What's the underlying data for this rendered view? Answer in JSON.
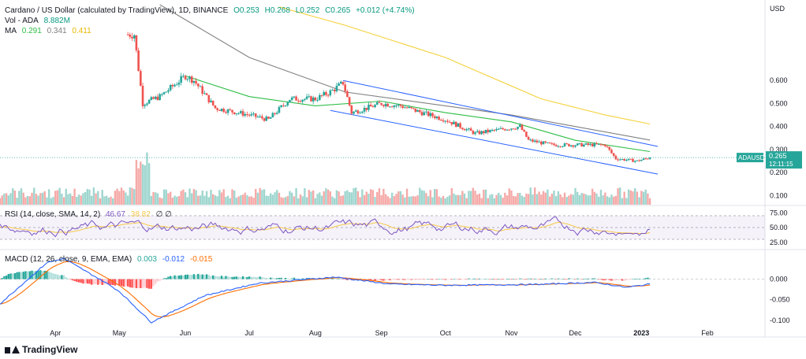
{
  "header": {
    "symbol_line": "Cardano / US Dollar (calculated by TradingView), 1D, BINANCE",
    "o": "O0.253",
    "h": "H0.268",
    "l": "L0.252",
    "c": "C0.265",
    "chg": "+0.012 (+4.74%)",
    "vol_label": "Vol - ADA",
    "vol_value": "8.882M",
    "ma_label": "MA",
    "ma_values": [
      "0.291",
      "0.341",
      "0.411"
    ],
    "rsi_label": "RSI (14, close, SMA, 14, 2)",
    "rsi_values": [
      "46.67",
      "38.82"
    ],
    "rsi_extra": "∅ ∅",
    "macd_label": "MACD (12, 26, close, 9, EMA, EMA)",
    "macd_values": [
      "0.003",
      "-0.012",
      "-0.015"
    ]
  },
  "price_label": {
    "symbol": "ADAUSD",
    "value": "0.265",
    "countdown": "12:11:15"
  },
  "currency": "USD",
  "brand": "TradingView",
  "colors": {
    "up": "#26a69a",
    "down": "#ef5350",
    "ma1": "#2ebd46",
    "ma2": "#808080",
    "ma3": "#f5d13b",
    "channel": "#2962ff",
    "rsi": "#7e57c2",
    "rsi_ma": "#f7c948",
    "macd": "#2962ff",
    "signal": "#ff6d00"
  },
  "chart_data": {
    "type": "candlestick",
    "title": "Cardano / US Dollar (calculated by TradingView), 1D, BINANCE",
    "x_labels": [
      "Apr",
      "May",
      "Jun",
      "Jul",
      "Aug",
      "Sep",
      "Oct",
      "Nov",
      "Dec",
      "2023",
      "Feb"
    ],
    "price_axis": {
      "ticks": [
        "0.600",
        "0.500",
        "0.400",
        "0.300",
        "0.200",
        "0.100"
      ],
      "ylim": [
        0.06,
        0.95
      ]
    },
    "rsi_axis": {
      "ticks": [
        "75.00",
        "50.00",
        "25.00"
      ],
      "band": [
        30,
        70
      ]
    },
    "macd_axis": {
      "ticks": [
        "0.000",
        "-0.050",
        "-0.100"
      ],
      "ylim": [
        -0.11,
        0.07
      ]
    },
    "series": [
      {
        "name": "ADAUSD close (sampled)",
        "x": [
          "2022-05-08",
          "2022-05-12",
          "2022-05-20",
          "2022-06-01",
          "2022-06-05",
          "2022-06-15",
          "2022-07-01",
          "2022-07-10",
          "2022-07-20",
          "2022-08-01",
          "2022-08-08",
          "2022-08-14",
          "2022-08-18",
          "2022-09-01",
          "2022-09-10",
          "2022-09-20",
          "2022-10-01",
          "2022-10-15",
          "2022-11-05",
          "2022-11-09",
          "2022-11-20",
          "2022-12-01",
          "2022-12-15",
          "2022-12-20",
          "2022-12-30",
          "2023-01-05"
        ],
        "values": [
          0.8,
          0.5,
          0.53,
          0.62,
          0.6,
          0.48,
          0.45,
          0.43,
          0.52,
          0.52,
          0.55,
          0.59,
          0.46,
          0.5,
          0.49,
          0.46,
          0.43,
          0.37,
          0.4,
          0.34,
          0.32,
          0.32,
          0.32,
          0.26,
          0.25,
          0.265
        ]
      },
      {
        "name": "MA",
        "values_at": [
          "2022-06-01",
          "2022-07-01",
          "2022-08-01",
          "2022-09-01",
          "2022-10-01",
          "2022-11-01",
          "2022-12-01",
          "2023-01-05"
        ],
        "values": [
          0.62,
          0.53,
          0.49,
          0.51,
          0.46,
          0.42,
          0.34,
          0.291
        ]
      },
      {
        "name": "MA",
        "values_at": [
          "2022-05-20",
          "2022-07-01",
          "2022-08-15",
          "2022-10-01",
          "2022-11-01",
          "2022-12-01",
          "2023-01-05"
        ],
        "values": [
          0.93,
          0.7,
          0.55,
          0.49,
          0.45,
          0.4,
          0.341
        ]
      },
      {
        "name": "MA",
        "values_at": [
          "2022-07-15",
          "2022-08-15",
          "2022-10-01",
          "2022-11-15",
          "2022-12-15",
          "2023-01-05"
        ],
        "values": [
          0.92,
          0.84,
          0.7,
          0.52,
          0.45,
          0.411
        ]
      }
    ],
    "channel": {
      "upper": [
        [
          "2022-08-14",
          0.6
        ],
        [
          "2023-01-05",
          0.32
        ]
      ],
      "lower": [
        [
          "2022-08-08",
          0.47
        ],
        [
          "2023-01-05",
          0.2
        ]
      ]
    },
    "last_price": 0.265
  }
}
